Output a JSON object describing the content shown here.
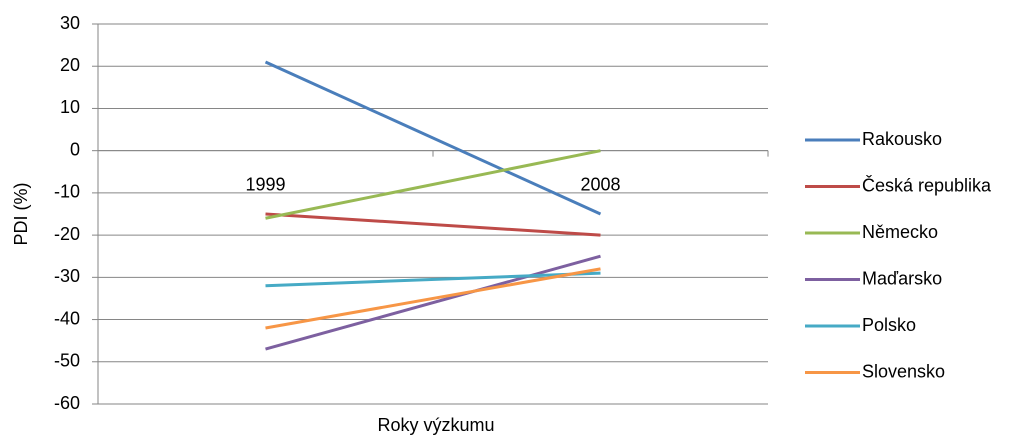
{
  "chart_data": {
    "type": "line",
    "x_label": "Roky výzkumu",
    "y_label": "PDI (%)",
    "categories": [
      "1999",
      "2008"
    ],
    "series": [
      {
        "name": "Rakousko",
        "color": "#4a7ebb",
        "values": [
          21,
          -15
        ]
      },
      {
        "name": "Česká republika",
        "color": "#be4b48",
        "values": [
          -15,
          -20
        ]
      },
      {
        "name": "Německo",
        "color": "#98b954",
        "values": [
          -16,
          0
        ]
      },
      {
        "name": "Maďarsko",
        "color": "#7d60a0",
        "values": [
          -47,
          -25
        ]
      },
      {
        "name": "Polsko",
        "color": "#46aac5",
        "values": [
          -32,
          -29
        ]
      },
      {
        "name": "Slovensko",
        "color": "#f79646",
        "values": [
          -42,
          -28
        ]
      }
    ],
    "ylim": [
      -60,
      30
    ],
    "yticks": [
      30,
      20,
      10,
      0,
      -10,
      -20,
      -30,
      -40,
      -50,
      -60
    ],
    "grid": true,
    "legend": "right"
  }
}
